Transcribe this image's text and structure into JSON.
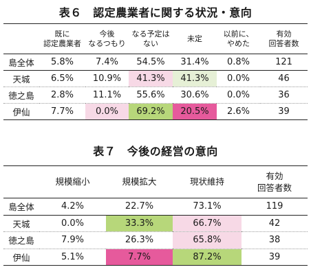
{
  "table6": {
    "title": "表６　認定農業者に関する状況・意向",
    "headers": [
      {
        "line1": "",
        "line2": ""
      },
      {
        "line1": "既に",
        "line2": "認定農業者"
      },
      {
        "line1": "今後",
        "line2": "なるつもり"
      },
      {
        "line1": "なる予定は",
        "line2": "ない"
      },
      {
        "line1": "未定",
        "line2": ""
      },
      {
        "line1": "以前に、",
        "line2": "やめた"
      },
      {
        "line1": "有効",
        "line2": "回答者数"
      }
    ],
    "rows": [
      {
        "label": "島全体",
        "cells": [
          "5.8%",
          "7.4%",
          "54.5%",
          "31.4%",
          "0.8%",
          "121"
        ]
      },
      {
        "label": "天城",
        "cells": [
          "6.5%",
          "10.9%",
          "41.3%",
          "41.3%",
          "0.0%",
          "46"
        ]
      },
      {
        "label": "徳之島",
        "cells": [
          "2.8%",
          "11.1%",
          "55.6%",
          "30.6%",
          "0.0%",
          "36"
        ]
      },
      {
        "label": "伊仙",
        "cells": [
          "7.7%",
          "0.0%",
          "69.2%",
          "20.5%",
          "2.6%",
          "39"
        ]
      }
    ],
    "highlights": [
      {
        "row": 1,
        "col": 2,
        "color": "#f7d9e6"
      },
      {
        "row": 1,
        "col": 3,
        "color": "#e6f0d6"
      },
      {
        "row": 3,
        "col": 1,
        "color": "#f7d9e6"
      },
      {
        "row": 3,
        "col": 2,
        "color": "#b7d77a"
      },
      {
        "row": 3,
        "col": 3,
        "color": "#e65a9c"
      }
    ]
  },
  "table7": {
    "title": "表７　今後の経営の意向",
    "headers": [
      {
        "line1": "",
        "line2": ""
      },
      {
        "line1": "規模縮小",
        "line2": ""
      },
      {
        "line1": "規模拡大",
        "line2": ""
      },
      {
        "line1": "現状維持",
        "line2": ""
      },
      {
        "line1": "有効",
        "line2": "回答者数"
      }
    ],
    "rows": [
      {
        "label": "島全体",
        "cells": [
          "4.2%",
          "22.7%",
          "73.1%",
          "119"
        ]
      },
      {
        "label": "天城",
        "cells": [
          "0.0%",
          "33.3%",
          "66.7%",
          "42"
        ]
      },
      {
        "label": "徳之島",
        "cells": [
          "7.9%",
          "26.3%",
          "65.8%",
          "38"
        ]
      },
      {
        "label": "伊仙",
        "cells": [
          "5.1%",
          "7.7%",
          "87.2%",
          "39"
        ]
      }
    ],
    "highlights": [
      {
        "row": 1,
        "col": 1,
        "color": "#b7d77a"
      },
      {
        "row": 1,
        "col": 2,
        "color": "#f7d9e6"
      },
      {
        "row": 2,
        "col": 2,
        "color": "#f7d9e6"
      },
      {
        "row": 3,
        "col": 1,
        "color": "#e65a9c"
      },
      {
        "row": 3,
        "col": 2,
        "color": "#b7d77a"
      }
    ]
  }
}
